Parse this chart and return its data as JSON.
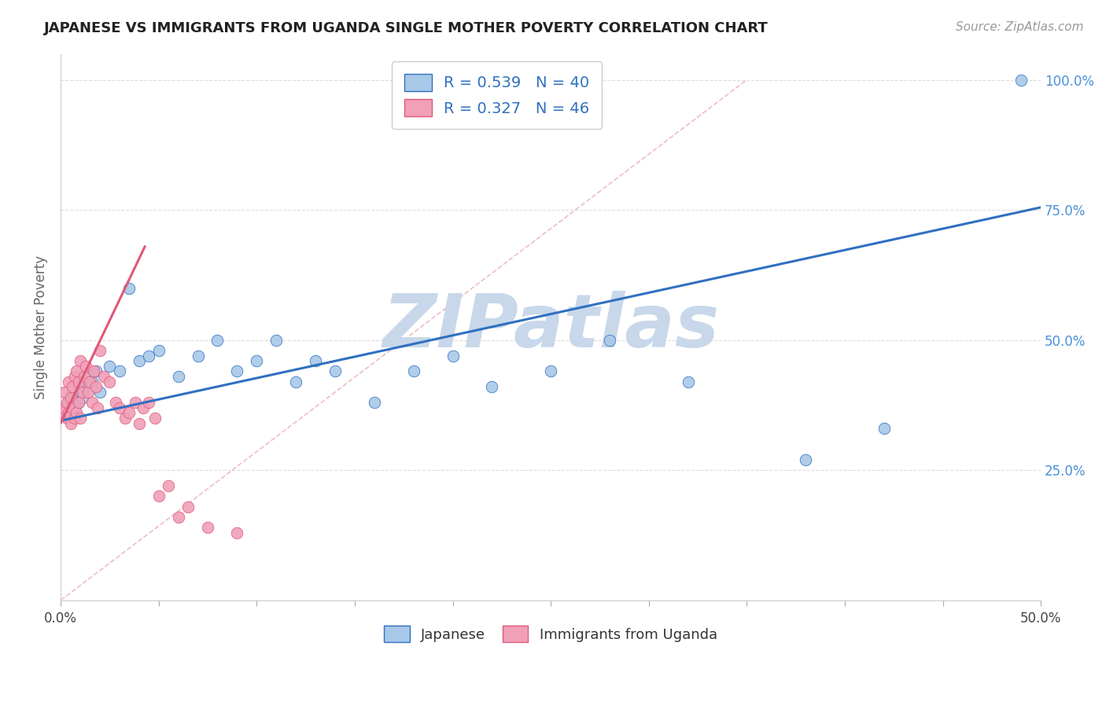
{
  "title": "JAPANESE VS IMMIGRANTS FROM UGANDA SINGLE MOTHER POVERTY CORRELATION CHART",
  "source": "Source: ZipAtlas.com",
  "ylabel": "Single Mother Poverty",
  "xlim": [
    0.0,
    0.5
  ],
  "ylim": [
    0.0,
    1.05
  ],
  "xticks": [
    0.0,
    0.05,
    0.1,
    0.15,
    0.2,
    0.25,
    0.3,
    0.35,
    0.4,
    0.45,
    0.5
  ],
  "xticklabels": [
    "0.0%",
    "",
    "",
    "",
    "",
    "",
    "",
    "",
    "",
    "",
    "50.0%"
  ],
  "ytick_positions": [
    0.0,
    0.25,
    0.5,
    0.75,
    1.0
  ],
  "yticklabels_right": [
    "",
    "25.0%",
    "50.0%",
    "75.0%",
    "100.0%"
  ],
  "R_japanese": 0.539,
  "N_japanese": 40,
  "R_uganda": 0.327,
  "N_uganda": 46,
  "japanese_color": "#a8c8e8",
  "uganda_color": "#f0a0b8",
  "trend_japanese_color": "#3070c0",
  "trend_uganda_color": "#e05878",
  "watermark": "ZIPatlas",
  "watermark_color": "#c8d8ea",
  "japanese_x": [
    0.002,
    0.003,
    0.004,
    0.005,
    0.006,
    0.007,
    0.008,
    0.009,
    0.01,
    0.011,
    0.012,
    0.014,
    0.016,
    0.018,
    0.02,
    0.025,
    0.03,
    0.035,
    0.04,
    0.045,
    0.05,
    0.06,
    0.07,
    0.08,
    0.09,
    0.1,
    0.11,
    0.12,
    0.13,
    0.14,
    0.16,
    0.18,
    0.2,
    0.22,
    0.25,
    0.28,
    0.32,
    0.38,
    0.42,
    0.49
  ],
  "japanese_y": [
    0.36,
    0.37,
    0.38,
    0.36,
    0.39,
    0.37,
    0.4,
    0.38,
    0.42,
    0.39,
    0.41,
    0.43,
    0.42,
    0.44,
    0.4,
    0.45,
    0.44,
    0.6,
    0.46,
    0.47,
    0.48,
    0.43,
    0.47,
    0.5,
    0.44,
    0.46,
    0.5,
    0.42,
    0.46,
    0.44,
    0.38,
    0.44,
    0.47,
    0.41,
    0.44,
    0.5,
    0.42,
    0.27,
    0.33,
    1.0
  ],
  "uganda_x": [
    0.001,
    0.002,
    0.002,
    0.003,
    0.003,
    0.004,
    0.004,
    0.005,
    0.005,
    0.006,
    0.006,
    0.007,
    0.007,
    0.008,
    0.008,
    0.009,
    0.009,
    0.01,
    0.01,
    0.011,
    0.012,
    0.013,
    0.014,
    0.015,
    0.016,
    0.017,
    0.018,
    0.019,
    0.02,
    0.022,
    0.025,
    0.028,
    0.03,
    0.033,
    0.035,
    0.038,
    0.04,
    0.042,
    0.045,
    0.048,
    0.05,
    0.055,
    0.06,
    0.065,
    0.075,
    0.09
  ],
  "uganda_y": [
    0.36,
    0.37,
    0.4,
    0.35,
    0.38,
    0.36,
    0.42,
    0.34,
    0.39,
    0.37,
    0.41,
    0.35,
    0.43,
    0.36,
    0.44,
    0.38,
    0.42,
    0.35,
    0.46,
    0.4,
    0.43,
    0.45,
    0.4,
    0.42,
    0.38,
    0.44,
    0.41,
    0.37,
    0.48,
    0.43,
    0.42,
    0.38,
    0.37,
    0.35,
    0.36,
    0.38,
    0.34,
    0.37,
    0.38,
    0.35,
    0.2,
    0.22,
    0.16,
    0.18,
    0.14,
    0.13
  ],
  "diag_line_color": "#e8a0b0",
  "trend_j_x0": 0.0,
  "trend_j_x1": 0.5,
  "trend_j_y0": 0.345,
  "trend_j_y1": 0.755,
  "trend_u_x0": 0.0,
  "trend_u_x1": 0.043,
  "trend_u_y0": 0.34,
  "trend_u_y1": 0.68
}
